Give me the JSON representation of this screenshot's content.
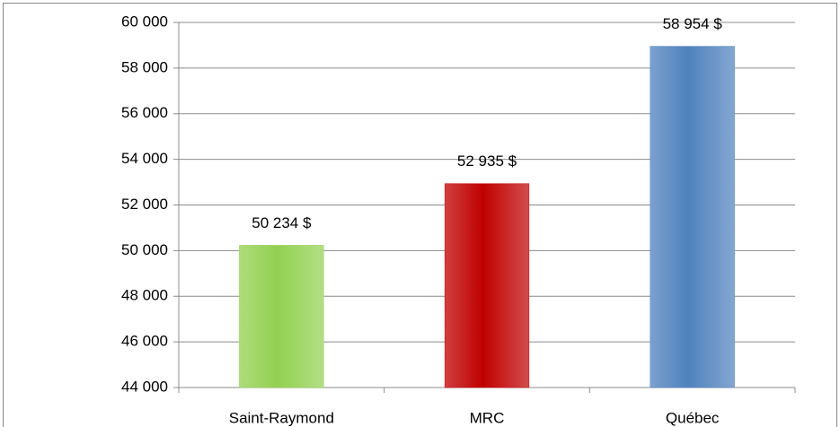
{
  "chart_data": {
    "type": "bar",
    "categories": [
      "Saint-Raymond",
      "MRC",
      "Québec"
    ],
    "values": [
      50234,
      52935,
      58954
    ],
    "value_labels": [
      "50 234 $",
      "52 935 $",
      "58 954 $"
    ],
    "colors": [
      "#92d050",
      "#c00000",
      "#4f81bd"
    ],
    "ylim": [
      44000,
      60000
    ],
    "yticks": [
      {
        "value": 44000,
        "label": "44 000"
      },
      {
        "value": 46000,
        "label": "46 000"
      },
      {
        "value": 48000,
        "label": "48 000"
      },
      {
        "value": 50000,
        "label": "50 000"
      },
      {
        "value": 52000,
        "label": "52 000"
      },
      {
        "value": 54000,
        "label": "54 000"
      },
      {
        "value": 56000,
        "label": "56 000"
      },
      {
        "value": 58000,
        "label": "58 000"
      },
      {
        "value": 60000,
        "label": "60 000"
      }
    ],
    "grid": true
  }
}
